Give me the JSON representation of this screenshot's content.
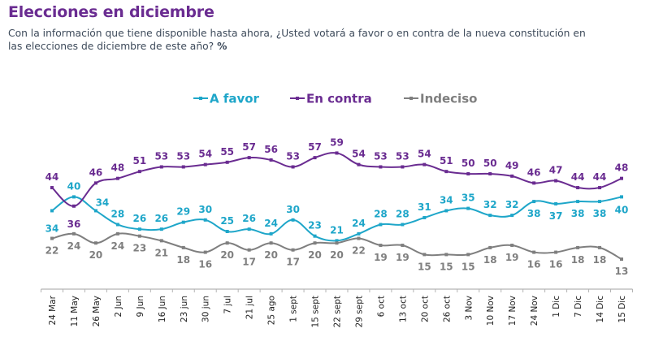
{
  "header": {
    "title": "Elecciones en diciembre",
    "subtitle": "Con la información que tiene disponible hasta ahora, ¿Usted votará a favor o en contra de la nueva constitución en las elecciones de diciembre de este año?",
    "unit_marker": "%"
  },
  "chart_data": {
    "type": "line",
    "title": "Elecciones en diciembre",
    "xlabel": "",
    "ylabel": "%",
    "ylim": [
      0,
      60
    ],
    "grid": false,
    "legend_position": "top-center",
    "categories": [
      "24 Mar",
      "11 May",
      "26 May",
      "2 Jun",
      "9 Jun",
      "16 Jun",
      "23 jun",
      "30 jun",
      "7 jul",
      "21 jul",
      "25 ago",
      "1 sept",
      "15 sept",
      "22 sept",
      "29 sept",
      "6 oct",
      "13 oct",
      "20 oct",
      "26 oct",
      "3 Nov",
      "10 Nov",
      "17 Nov",
      "24 Nov",
      "1 Dic",
      "7 Dic",
      "14 Dic",
      "15 Dic"
    ],
    "series": [
      {
        "name": "A favor",
        "color": "#1ea6c9",
        "values": [
          34,
          40,
          34,
          28,
          26,
          26,
          29,
          30,
          25,
          26,
          24,
          30,
          23,
          21,
          24,
          28,
          28,
          31,
          34,
          35,
          32,
          32,
          38,
          37,
          38,
          38,
          40
        ]
      },
      {
        "name": "En contra",
        "color": "#6a2c91",
        "values": [
          44,
          36,
          46,
          48,
          51,
          53,
          53,
          54,
          55,
          57,
          56,
          53,
          57,
          59,
          54,
          53,
          53,
          54,
          51,
          50,
          50,
          49,
          46,
          47,
          44,
          44,
          48
        ]
      },
      {
        "name": "Indeciso",
        "color": "#7f7f7f",
        "values": [
          22,
          24,
          20,
          24,
          23,
          21,
          18,
          16,
          20,
          17,
          20,
          17,
          20,
          20,
          22,
          19,
          19,
          15,
          15,
          15,
          18,
          19,
          16,
          16,
          18,
          18,
          13
        ]
      }
    ]
  }
}
